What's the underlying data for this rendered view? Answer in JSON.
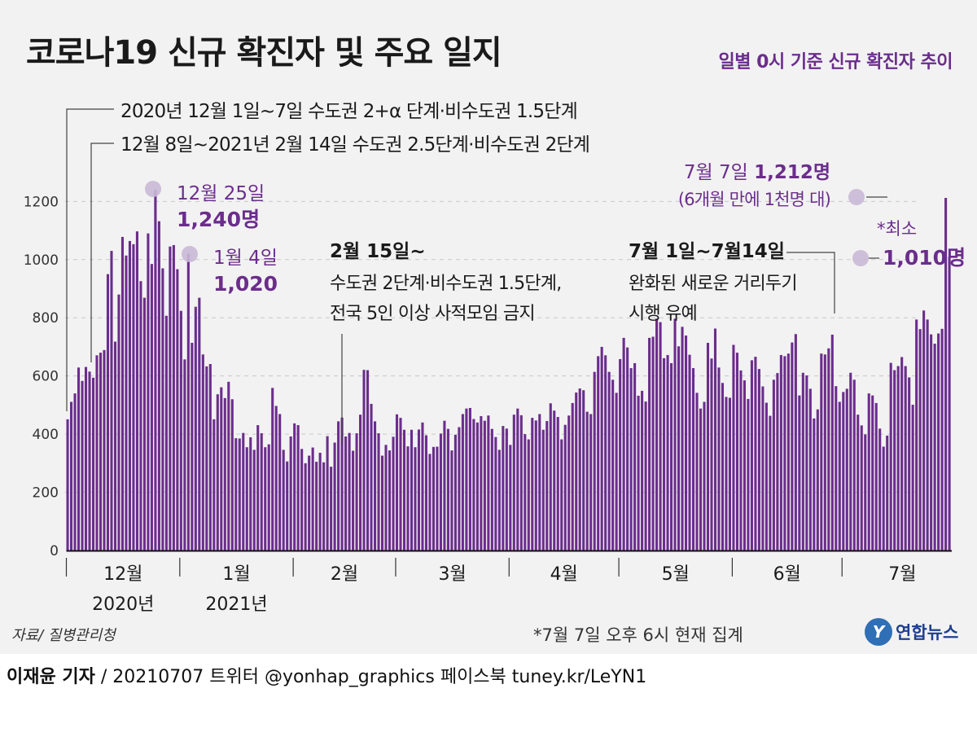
{
  "title": "코로나19 신규 확진자 및 주요 일지",
  "subtitle": "일별 0시 기준 신규 확진자 추이",
  "source": "자료/ 질병관리청",
  "footnote": "*7월 7일 오후 6시 현재 집계",
  "logo": {
    "mark": "Y",
    "text": "연합뉴스"
  },
  "credit": {
    "reporter": "이재윤 기자",
    "rest": " / 20210707   트위터 @yonhap_graphics  페이스북 tuney.kr/LeYN1"
  },
  "colors": {
    "bar": "#6b2d8c",
    "accent": "#6b2d8c",
    "marker": "#c9b8d6",
    "panel": "#f2f2f2"
  },
  "chart_data": {
    "type": "bar",
    "x_start": "2020-12-01",
    "x_end": "2021-07-07",
    "ylim": [
      0,
      1300
    ],
    "yticks": [
      0,
      200,
      400,
      600,
      800,
      1000,
      1200
    ],
    "grid": true,
    "month_labels": [
      "12월",
      "1월",
      "2월",
      "3월",
      "4월",
      "5월",
      "6월",
      "7월"
    ],
    "year_labels": [
      "2020년",
      "2021년"
    ],
    "values": [
      451,
      511,
      540,
      629,
      583,
      631,
      615,
      594,
      671,
      680,
      689,
      950,
      1030,
      718,
      880,
      1078,
      1014,
      1064,
      1053,
      1097,
      926,
      869,
      1090,
      985,
      1240,
      1132,
      970,
      807,
      1045,
      1050,
      967,
      824,
      657,
      1020,
      714,
      838,
      869,
      674,
      633,
      641,
      451,
      537,
      561,
      524,
      580,
      520,
      386,
      385,
      404,
      355,
      389,
      346,
      431,
      403,
      355,
      365,
      559,
      497,
      469,
      346,
      306,
      392,
      437,
      431,
      349,
      300,
      326,
      354,
      305,
      336,
      303,
      393,
      288,
      371,
      444,
      457,
      392,
      404,
      343,
      403,
      467,
      621,
      620,
      504,
      444,
      403,
      326,
      363,
      344,
      391,
      468,
      456,
      415,
      358,
      415,
      355,
      416,
      440,
      396,
      332,
      356,
      357,
      402,
      446,
      418,
      344,
      398,
      424,
      469,
      488,
      490,
      452,
      440,
      462,
      446,
      464,
      418,
      390,
      346,
      428,
      419,
      363,
      467,
      488,
      465,
      400,
      382,
      456,
      447,
      469,
      415,
      445,
      506,
      481,
      459,
      382,
      432,
      464,
      507,
      543,
      557,
      551,
      477,
      469,
      614,
      668,
      700,
      671,
      614,
      587,
      542,
      658,
      731,
      698,
      627,
      644,
      532,
      549,
      512,
      731,
      735,
      797,
      785,
      661,
      672,
      644,
      797,
      702,
      769,
      739,
      673,
      627,
      542,
      488,
      511,
      714,
      660,
      763,
      629,
      576,
      528,
      525,
      707,
      680,
      619,
      585,
      521,
      654,
      666,
      624,
      564,
      508,
      463,
      587,
      610,
      672,
      668,
      677,
      715,
      744,
      533,
      611,
      602,
      556,
      454,
      485,
      677,
      674,
      695,
      742,
      565,
      511,
      545,
      556,
      611,
      587,
      467,
      430,
      399,
      540,
      533,
      507,
      419,
      357,
      395,
      645,
      620,
      634,
      665,
      634,
      595,
      501,
      794,
      761,
      825,
      794,
      743,
      711,
      746,
      762,
      1212,
      1010
    ]
  },
  "annotations": {
    "event1": "2020년 12월 1일~7일 수도권 2+α 단계·비수도권 1.5단계",
    "event2": "12월 8일~2021년 2월 14일 수도권 2.5단계·비수도권 2단계",
    "peak1_date": "12월 25일",
    "peak1_value": "1,240명",
    "peak2_date": "1월 4일",
    "peak2_value": "1,020",
    "feb_line1": "2월 15일~",
    "feb_line2": "수도권 2단계·비수도권 1.5단계,",
    "feb_line3": "전국 5인 이상 사적모임 금지",
    "jul_line1": "7월 1일~7월14일",
    "jul_line2": "완화된 새로운 거리두기",
    "jul_line3": "시행 유예",
    "latest_line1_pre": "7월 7일 ",
    "latest_line1_val": "1,212명",
    "latest_line2": "(6개월 만에 1천명 대)",
    "min_label": "*최소",
    "min_value": "1,010명"
  }
}
